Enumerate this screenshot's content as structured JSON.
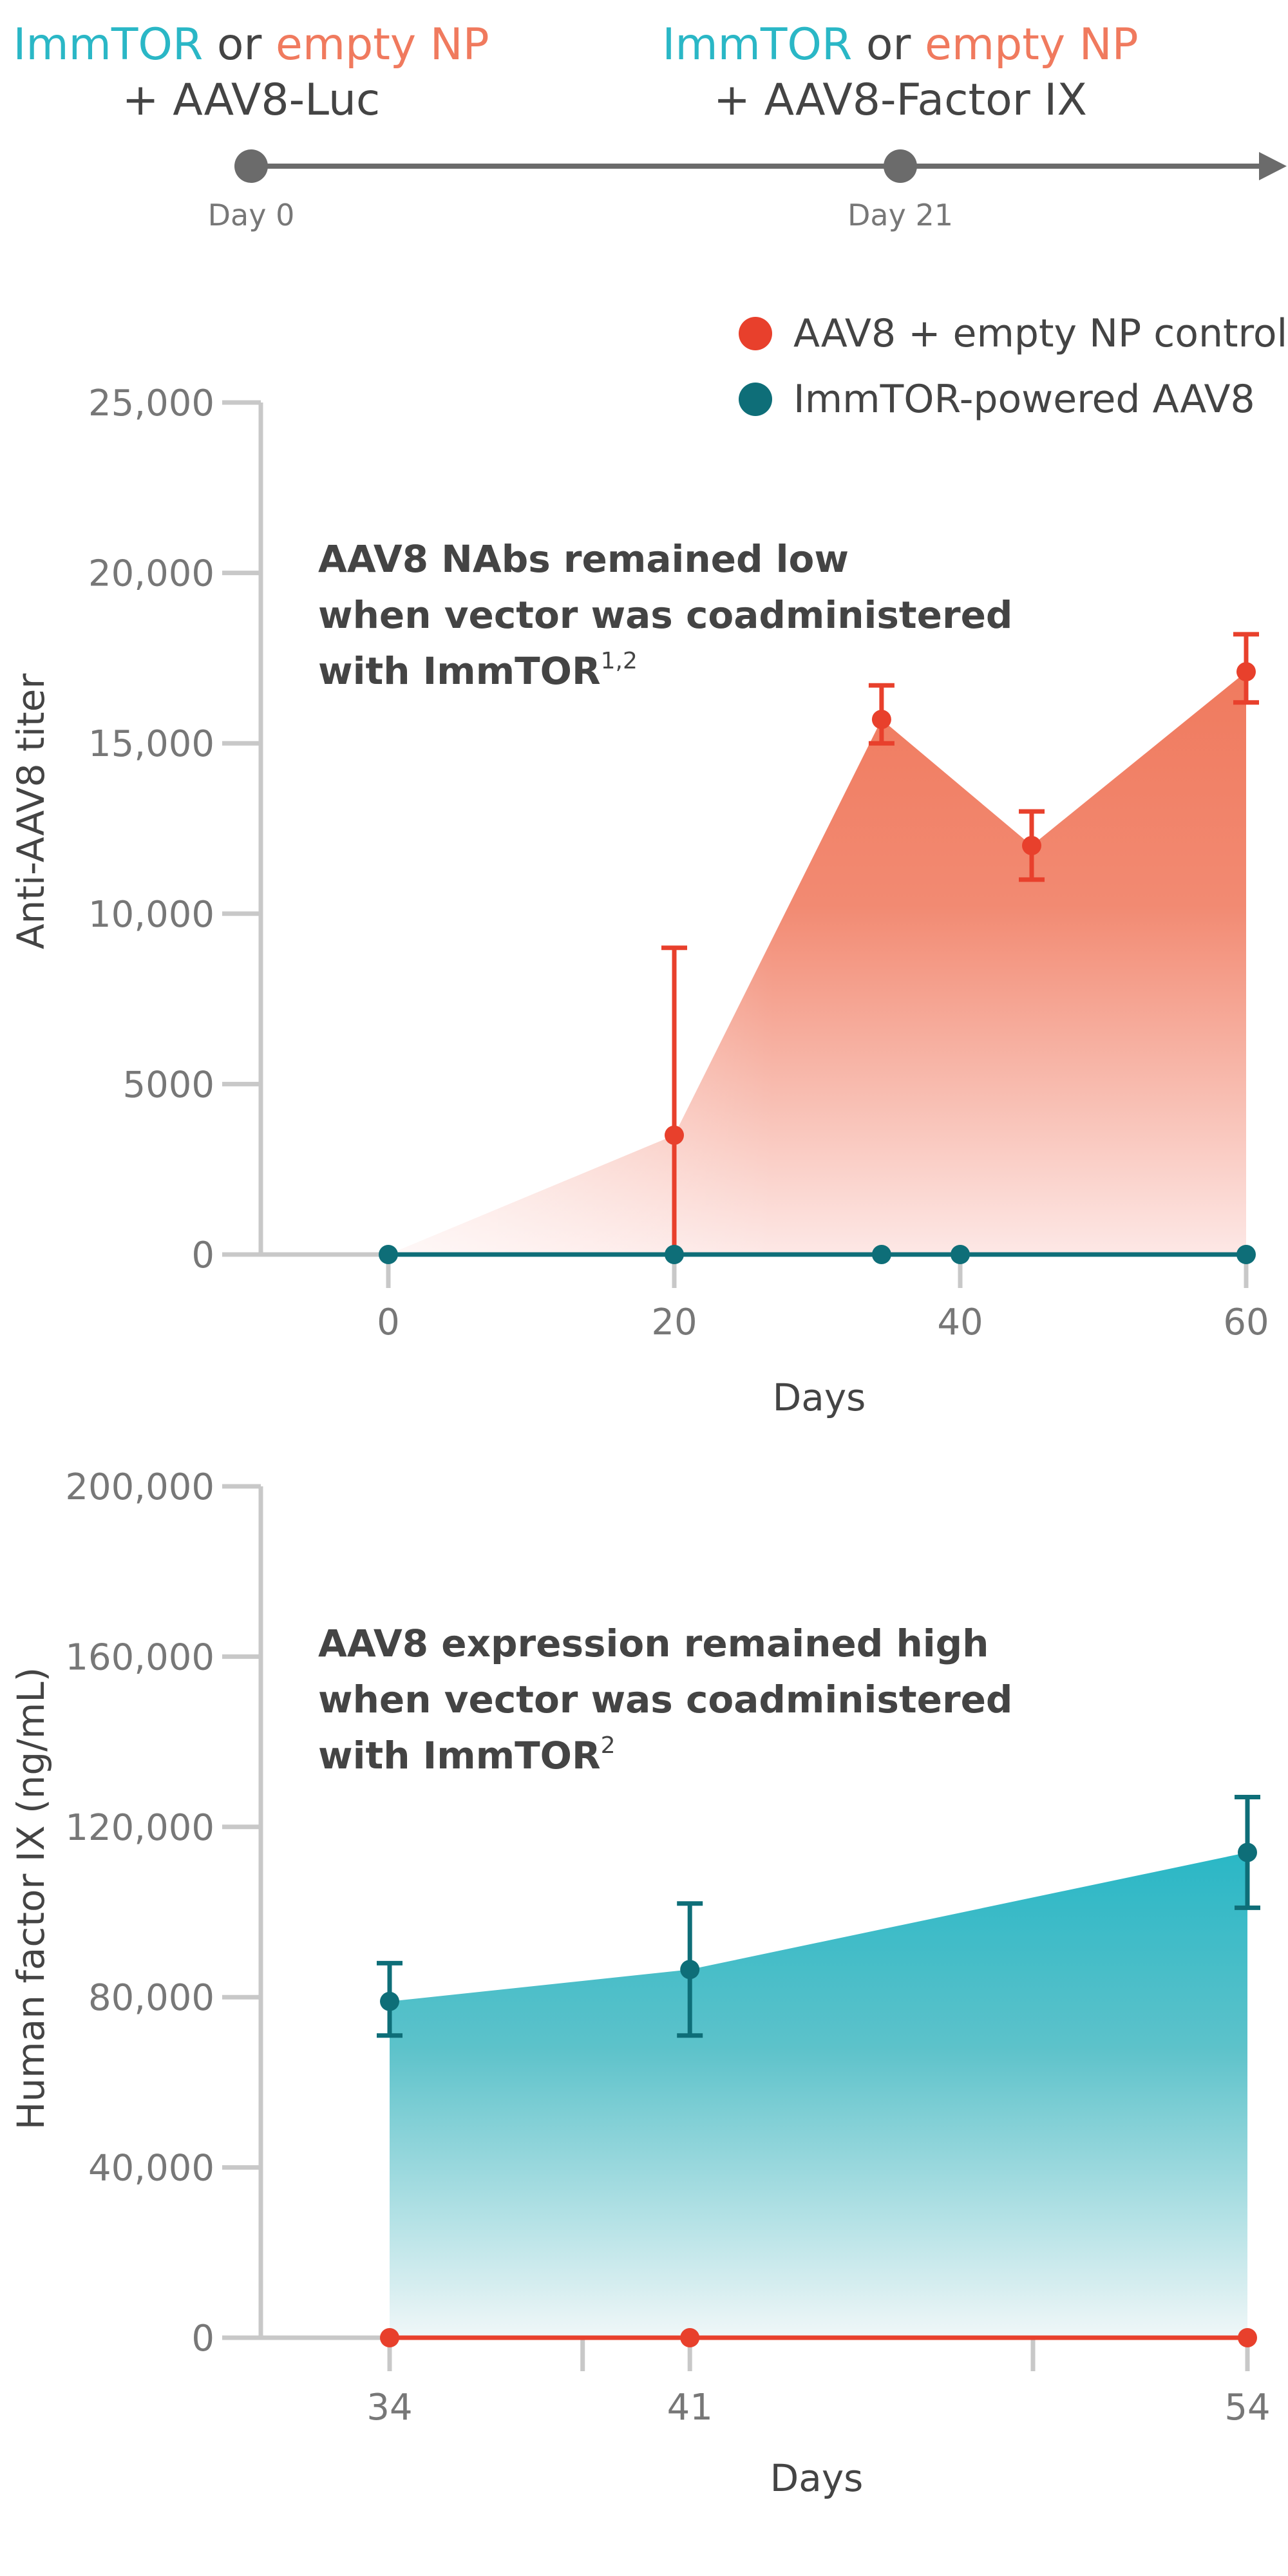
{
  "colors": {
    "teal": "#2ab7c6",
    "dark_teal": "#0e6e78",
    "orange": "#f07a5e",
    "red": "#e8402c",
    "axis": "#c8c8c8",
    "timeline": "#6b6b6b",
    "text": "#444444",
    "tick_text": "#777777"
  },
  "timeline": {
    "event1": {
      "line1_teal": "ImmTOR",
      "line1_mid": " or ",
      "line1_orange": "empty NP",
      "line2": "+ AAV8-Luc",
      "day_label": "Day 0",
      "day": 0
    },
    "event2": {
      "line1_teal": "ImmTOR",
      "line1_mid": " or ",
      "line1_orange": "empty NP",
      "line2": "+ AAV8-Factor IX",
      "day_label": "Day 21",
      "day": 21
    }
  },
  "legend": [
    {
      "label": "AAV8 + empty NP control",
      "color": "#e8402c"
    },
    {
      "label": "ImmTOR-powered AAV8",
      "color": "#0e6e78"
    }
  ],
  "chart_data": [
    {
      "type": "area",
      "ylabel": "Anti-AAV8 titer",
      "xlabel": "Days",
      "annotation": {
        "line1": "AAV8 NAbs remained low",
        "line2": "when vector was coadministered",
        "line3": "with ImmTOR",
        "sup": "1,2"
      },
      "xlim": [
        0,
        60
      ],
      "ylim": [
        0,
        25000
      ],
      "xticks": [
        0,
        20,
        40,
        60
      ],
      "xtick_labels": [
        "0",
        "20",
        "40",
        "60"
      ],
      "yticks": [
        0,
        5000,
        10000,
        15000,
        20000,
        25000
      ],
      "ytick_labels": [
        "0",
        "5000",
        "10,000",
        "15,000",
        "20,000",
        "25,000"
      ],
      "series": [
        {
          "name": "AAV8 + empty NP control",
          "color": "#e8402c",
          "points": [
            {
              "x": 0,
              "y": 0
            },
            {
              "x": 20,
              "y": 3500,
              "err_low": 0,
              "err_high": 9000
            },
            {
              "x": 34.5,
              "y": 15700,
              "err_low": 15000,
              "err_high": 16700
            },
            {
              "x": 45,
              "y": 12000,
              "err_low": 11000,
              "err_high": 13000
            },
            {
              "x": 60,
              "y": 17100,
              "err_low": 16200,
              "err_high": 18200
            }
          ]
        },
        {
          "name": "ImmTOR-powered AAV8",
          "color": "#0e6e78",
          "points": [
            {
              "x": 0,
              "y": 0
            },
            {
              "x": 20,
              "y": 0
            },
            {
              "x": 34.5,
              "y": 0
            },
            {
              "x": 40,
              "y": 0
            },
            {
              "x": 60,
              "y": 0
            }
          ]
        }
      ]
    },
    {
      "type": "area",
      "ylabel": "Human factor IX (ng/mL)",
      "xlabel": "Days",
      "annotation": {
        "line1": "AAV8 expression remained high",
        "line2": "when vector was coadministered",
        "line3": "with ImmTOR",
        "sup": "2"
      },
      "xlim": [
        34,
        54
      ],
      "ylim": [
        0,
        200000
      ],
      "xticks": [
        34,
        41,
        54
      ],
      "xtick_labels": [
        "34",
        "41",
        "54"
      ],
      "minor_xticks": [
        38.5,
        49
      ],
      "yticks": [
        0,
        40000,
        80000,
        120000,
        160000,
        200000
      ],
      "ytick_labels": [
        "0",
        "40,000",
        "80,000",
        "120,000",
        "160,000",
        "200,000"
      ],
      "series": [
        {
          "name": "ImmTOR-powered AAV8",
          "color": "#0e6e78",
          "points": [
            {
              "x": 34,
              "y": 79000,
              "err_low": 71000,
              "err_high": 88000
            },
            {
              "x": 41,
              "y": 86500,
              "err_low": 71000,
              "err_high": 102000
            },
            {
              "x": 54,
              "y": 114000,
              "err_low": 101000,
              "err_high": 127000
            }
          ]
        },
        {
          "name": "AAV8 + empty NP control",
          "color": "#e8402c",
          "points": [
            {
              "x": 34,
              "y": 0
            },
            {
              "x": 41,
              "y": 0
            },
            {
              "x": 54,
              "y": 0
            }
          ]
        }
      ]
    }
  ]
}
